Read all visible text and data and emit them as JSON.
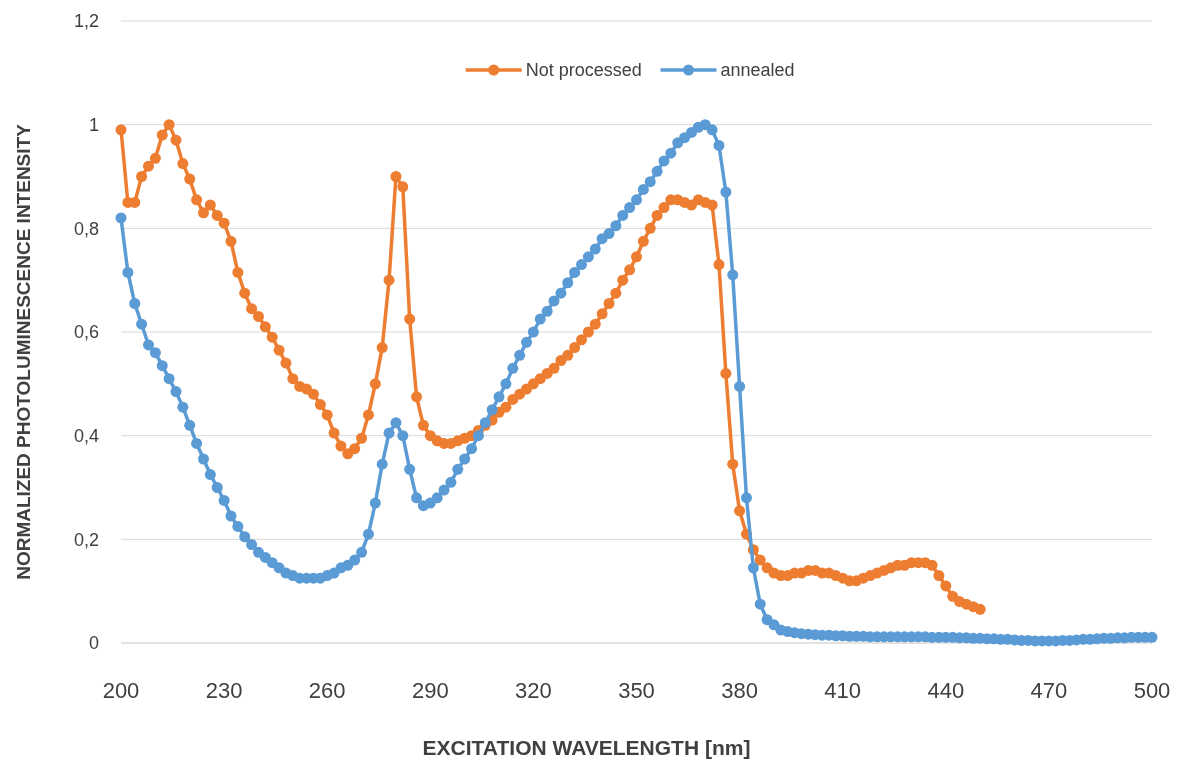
{
  "chart_data": {
    "type": "line",
    "xlabel": "EXCITATION WAVELENGTH [nm]",
    "ylabel": "NORMALIZED PHOTOLUMINESCENCE INTENSITY",
    "x": [
      200,
      202,
      204,
      206,
      208,
      210,
      212,
      214,
      216,
      218,
      220,
      222,
      224,
      226,
      228,
      230,
      232,
      234,
      236,
      238,
      240,
      242,
      244,
      246,
      248,
      250,
      252,
      254,
      256,
      258,
      260,
      262,
      264,
      266,
      268,
      270,
      272,
      274,
      276,
      278,
      280,
      282,
      284,
      286,
      288,
      290,
      292,
      294,
      296,
      298,
      300,
      302,
      304,
      306,
      308,
      310,
      312,
      314,
      316,
      318,
      320,
      322,
      324,
      326,
      328,
      330,
      332,
      334,
      336,
      338,
      340,
      342,
      344,
      346,
      348,
      350,
      352,
      354,
      356,
      358,
      360,
      362,
      364,
      366,
      368,
      370,
      372,
      374,
      376,
      378,
      380,
      382,
      384,
      386,
      388,
      390,
      392,
      394,
      396,
      398,
      400,
      402,
      404,
      406,
      408,
      410,
      412,
      414,
      416,
      418,
      420,
      422,
      424,
      426,
      428,
      430,
      432,
      434,
      436,
      438,
      440,
      442,
      444,
      446,
      448,
      450,
      452,
      454,
      456,
      458,
      460,
      462,
      464,
      466,
      468,
      470,
      472,
      474,
      476,
      478,
      480,
      482,
      484,
      486,
      488,
      490,
      492,
      494,
      496,
      498,
      500
    ],
    "series": [
      {
        "name": "Not processed",
        "color": "#ed7d31",
        "values": [
          0.99,
          0.85,
          0.85,
          0.9,
          0.92,
          0.935,
          0.98,
          1.0,
          0.97,
          0.925,
          0.895,
          0.855,
          0.83,
          0.845,
          0.825,
          0.81,
          0.775,
          0.715,
          0.675,
          0.645,
          0.63,
          0.61,
          0.59,
          0.565,
          0.54,
          0.51,
          0.495,
          0.49,
          0.48,
          0.46,
          0.44,
          0.405,
          0.38,
          0.365,
          0.375,
          0.395,
          0.44,
          0.5,
          0.57,
          0.7,
          0.9,
          0.88,
          0.625,
          0.475,
          0.42,
          0.4,
          0.39,
          0.385,
          0.385,
          0.39,
          0.395,
          0.4,
          0.41,
          0.42,
          0.43,
          0.445,
          0.455,
          0.47,
          0.48,
          0.49,
          0.5,
          0.51,
          0.52,
          0.53,
          0.545,
          0.555,
          0.57,
          0.585,
          0.6,
          0.615,
          0.635,
          0.655,
          0.675,
          0.7,
          0.72,
          0.745,
          0.775,
          0.8,
          0.825,
          0.84,
          0.855,
          0.855,
          0.85,
          0.845,
          0.855,
          0.85,
          0.845,
          0.73,
          0.52,
          0.345,
          0.255,
          0.21,
          0.18,
          0.16,
          0.145,
          0.135,
          0.13,
          0.13,
          0.135,
          0.135,
          0.14,
          0.14,
          0.135,
          0.135,
          0.13,
          0.125,
          0.12,
          0.12,
          0.125,
          0.13,
          0.135,
          0.14,
          0.145,
          0.15,
          0.15,
          0.155,
          0.155,
          0.155,
          0.15,
          0.13,
          0.11,
          0.09,
          0.08,
          0.075,
          0.07,
          0.065,
          null,
          null,
          null,
          null,
          null,
          null,
          null,
          null,
          null,
          null,
          null,
          null,
          null,
          null,
          null,
          null,
          null,
          null,
          null,
          null,
          null,
          null,
          null,
          null,
          null
        ]
      },
      {
        "name": "annealed",
        "color": "#5b9bd5",
        "values": [
          0.82,
          0.715,
          0.655,
          0.615,
          0.575,
          0.56,
          0.535,
          0.51,
          0.485,
          0.455,
          0.42,
          0.385,
          0.355,
          0.325,
          0.3,
          0.275,
          0.245,
          0.225,
          0.205,
          0.19,
          0.175,
          0.165,
          0.155,
          0.145,
          0.135,
          0.13,
          0.125,
          0.125,
          0.125,
          0.125,
          0.13,
          0.135,
          0.145,
          0.15,
          0.16,
          0.175,
          0.21,
          0.27,
          0.345,
          0.405,
          0.425,
          0.4,
          0.335,
          0.28,
          0.265,
          0.27,
          0.28,
          0.295,
          0.31,
          0.335,
          0.355,
          0.375,
          0.4,
          0.425,
          0.45,
          0.475,
          0.5,
          0.53,
          0.555,
          0.58,
          0.6,
          0.625,
          0.64,
          0.66,
          0.675,
          0.695,
          0.715,
          0.73,
          0.745,
          0.76,
          0.78,
          0.79,
          0.805,
          0.825,
          0.84,
          0.855,
          0.875,
          0.89,
          0.91,
          0.93,
          0.945,
          0.965,
          0.975,
          0.985,
          0.995,
          1.0,
          0.99,
          0.96,
          0.87,
          0.71,
          0.495,
          0.28,
          0.145,
          0.075,
          0.045,
          0.035,
          0.025,
          0.022,
          0.02,
          0.018,
          0.017,
          0.016,
          0.015,
          0.015,
          0.014,
          0.014,
          0.013,
          0.013,
          0.013,
          0.012,
          0.012,
          0.012,
          0.012,
          0.012,
          0.012,
          0.012,
          0.012,
          0.012,
          0.011,
          0.011,
          0.011,
          0.011,
          0.01,
          0.01,
          0.009,
          0.009,
          0.008,
          0.008,
          0.007,
          0.007,
          0.006,
          0.005,
          0.005,
          0.004,
          0.004,
          0.004,
          0.004,
          0.005,
          0.005,
          0.006,
          0.007,
          0.007,
          0.008,
          0.009,
          0.009,
          0.01,
          0.01,
          0.011,
          0.011,
          0.011,
          0.011
        ]
      }
    ],
    "xlim": [
      200,
      500
    ],
    "xticks": [
      200,
      230,
      260,
      290,
      320,
      350,
      380,
      410,
      440,
      470,
      500
    ],
    "ylim": [
      0,
      1.2
    ],
    "yticks": [
      0,
      {
        "value": 0.2,
        "label": "0,2"
      },
      {
        "value": 0.4,
        "label": "0,4"
      },
      {
        "value": 0.6,
        "label": "0,6"
      },
      {
        "value": 0.8,
        "label": "0,8"
      },
      1,
      {
        "value": 1.2,
        "label": "1,2"
      }
    ],
    "grid": "y",
    "legend": "top",
    "marker": "circle",
    "line_style": "solid"
  }
}
